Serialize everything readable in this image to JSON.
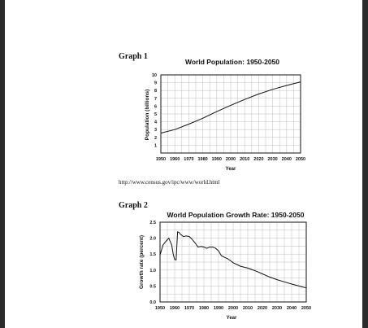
{
  "graph1_heading": "Graph 1",
  "graph2_heading": "Graph 2",
  "source_url": "http://www.census.gov/ipc/www/world.html",
  "chart_data": [
    {
      "type": "line",
      "title": "World Population: 1950-2050",
      "xlabel": "Year",
      "ylabel": "Population (billions)",
      "xlim": [
        1950,
        2050
      ],
      "ylim": [
        0,
        10
      ],
      "x_ticks": [
        1950,
        1960,
        1970,
        1980,
        1990,
        2000,
        2010,
        2020,
        2030,
        2040,
        2050
      ],
      "y_ticks": [
        1,
        2,
        3,
        4,
        5,
        6,
        7,
        8,
        9,
        10
      ],
      "grid": true,
      "series": [
        {
          "x": [
            1950,
            1960,
            1970,
            1980,
            1990,
            2000,
            2010,
            2020,
            2030,
            2040,
            2050
          ],
          "y": [
            2.55,
            3.0,
            3.7,
            4.45,
            5.3,
            6.1,
            6.85,
            7.55,
            8.15,
            8.65,
            9.1
          ]
        }
      ]
    },
    {
      "type": "line",
      "title": "World Population Growth Rate: 1950-2050",
      "xlabel": "Year",
      "ylabel": "Growth rate (percent)",
      "xlim": [
        1950,
        2050
      ],
      "ylim": [
        0.0,
        2.5
      ],
      "x_ticks": [
        1950,
        1960,
        1970,
        1980,
        1990,
        2000,
        2010,
        2020,
        2030,
        2040,
        2050
      ],
      "y_ticks": [
        "0.0",
        "0.5",
        "1.0",
        "1.5",
        "2.0",
        "2.5"
      ],
      "grid": true,
      "series": [
        {
          "x": [
            1950,
            1952,
            1954,
            1956,
            1958,
            1959,
            1960,
            1961,
            1962,
            1963,
            1964,
            1966,
            1968,
            1970,
            1972,
            1974,
            1976,
            1978,
            1980,
            1982,
            1984,
            1986,
            1988,
            1990,
            1992,
            1994,
            1996,
            1998,
            2000,
            2005,
            2010,
            2015,
            2020,
            2025,
            2030,
            2035,
            2040,
            2045,
            2050
          ],
          "y": [
            1.47,
            1.78,
            1.9,
            2.0,
            1.78,
            1.5,
            1.33,
            1.32,
            2.2,
            2.18,
            2.12,
            2.05,
            2.07,
            2.05,
            1.96,
            1.85,
            1.72,
            1.74,
            1.72,
            1.68,
            1.72,
            1.72,
            1.68,
            1.6,
            1.45,
            1.4,
            1.36,
            1.3,
            1.23,
            1.12,
            1.06,
            0.98,
            0.88,
            0.78,
            0.7,
            0.63,
            0.56,
            0.5,
            0.44
          ]
        }
      ]
    }
  ]
}
